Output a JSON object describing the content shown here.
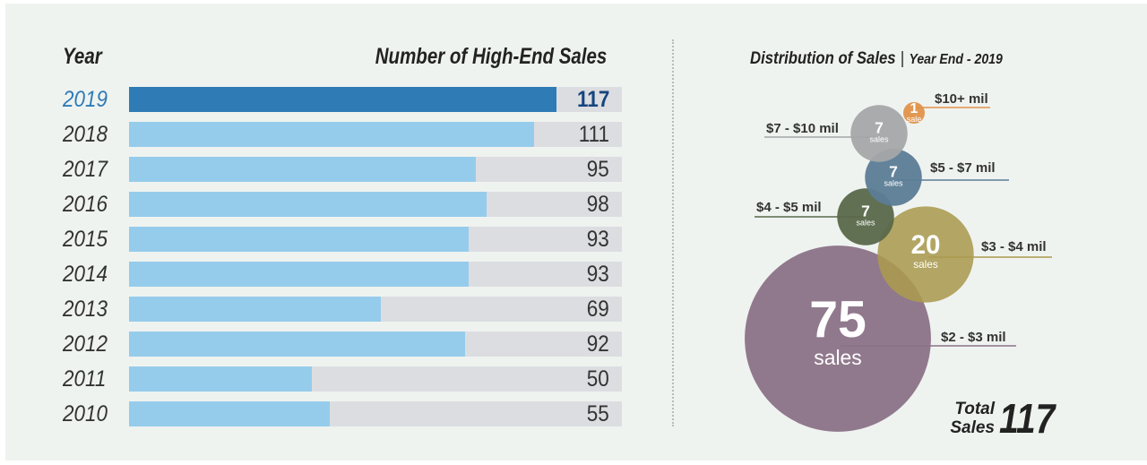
{
  "bar_chart": {
    "year_header": "Year",
    "sales_header": "Number of High-End Sales",
    "highlight": "2019"
  },
  "distribution": {
    "title": "Distribution of Sales",
    "subtitle": "Year End - 2019",
    "total_label_line1": "Total",
    "total_label_line2": "Sales",
    "total_value": "117"
  },
  "colors": {
    "bar_highlight": "#2f7bb6",
    "bar_normal": "#96cceb",
    "bar_track": "#dcdde1",
    "value_highlight": "#17457e"
  },
  "chart_data": [
    {
      "type": "bar",
      "orientation": "horizontal",
      "title": "Number of High-End Sales",
      "xlabel": "",
      "ylabel": "Year",
      "categories": [
        "2019",
        "2018",
        "2017",
        "2016",
        "2015",
        "2014",
        "2013",
        "2012",
        "2011",
        "2010"
      ],
      "values": [
        117,
        111,
        95,
        98,
        93,
        93,
        69,
        92,
        50,
        55
      ],
      "xlim": [
        0,
        135
      ],
      "grid": false
    },
    {
      "type": "bubble",
      "title": "Distribution of Sales | Year End - 2019",
      "categories": [
        "$10+ mil",
        "$7 - $10 mil",
        "$5 - $7 mil",
        "$4 - $5 mil",
        "$3 - $4 mil",
        "$2 - $3 mil"
      ],
      "values": [
        1,
        7,
        7,
        7,
        20,
        75
      ],
      "unit_singular": "sale",
      "unit_plural": "sales",
      "colors": [
        "#e0924a",
        "#a4a6a8",
        "#5b7c96",
        "#596849",
        "#ab9a4f",
        "#8b7287"
      ],
      "total": 117
    }
  ]
}
